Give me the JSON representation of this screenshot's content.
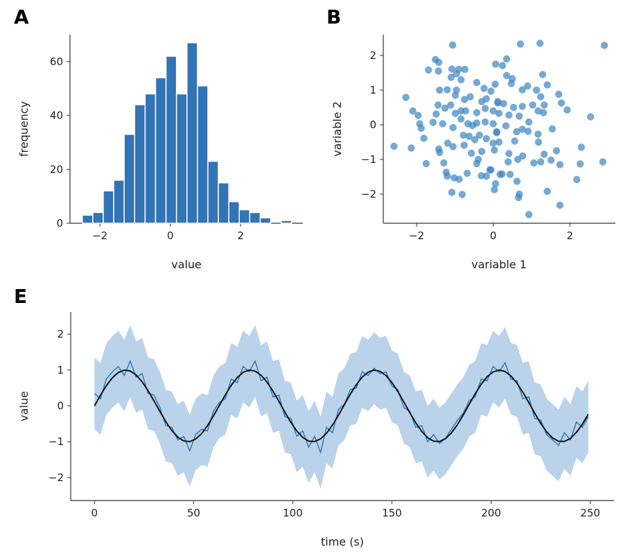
{
  "colors": {
    "bar": "#3274b5",
    "scatter": "#3c85c0",
    "band": "#bad3ea",
    "noisy_line": "#2f78b7",
    "smooth_line": "#111111"
  },
  "chart_data": [
    {
      "panel": "A",
      "type": "bar",
      "xlabel": "value",
      "ylabel": "frequency",
      "bin_start": -2.5,
      "bin_width": 0.2975,
      "values": [
        3,
        4,
        12,
        16,
        33,
        44,
        48,
        54,
        62,
        48,
        67,
        51,
        23,
        15,
        8,
        5,
        4,
        2,
        0,
        1
      ],
      "xlim": [
        -2.85,
        3.77
      ],
      "ylim": [
        0,
        70
      ],
      "xticks": [
        -2,
        0,
        2
      ],
      "yticks": [
        0,
        20,
        40,
        60
      ],
      "grid": false
    },
    {
      "panel": "B",
      "type": "scatter",
      "xlabel": "variable 1",
      "ylabel": "variable 2",
      "xlim": [
        -2.87,
        3.19
      ],
      "ylim": [
        -2.84,
        2.6
      ],
      "xticks": [
        -2,
        0,
        2
      ],
      "yticks": [
        -2,
        -1,
        0,
        1,
        2
      ],
      "grid": false,
      "points": [
        [
          -1.06,
          2.3
        ],
        [
          -1.51,
          1.88
        ],
        [
          -1.42,
          1.8
        ],
        [
          -1.69,
          1.58
        ],
        [
          -1.43,
          1.55
        ],
        [
          -1.08,
          1.61
        ],
        [
          -0.9,
          1.6
        ],
        [
          -0.74,
          1.6
        ],
        [
          -1.1,
          1.37
        ],
        [
          -0.96,
          1.47
        ],
        [
          -0.84,
          1.3
        ],
        [
          -0.43,
          1.22
        ],
        [
          0.06,
          1.75
        ],
        [
          -1.4,
          1.0
        ],
        [
          -1.2,
          1.01
        ],
        [
          -0.96,
          1.0
        ],
        [
          -0.99,
          0.85
        ],
        [
          -0.24,
          1.05
        ],
        [
          0.05,
          1.17
        ],
        [
          -0.06,
          0.97
        ],
        [
          -2.28,
          0.79
        ],
        [
          -0.75,
          0.73
        ],
        [
          -0.6,
          0.81
        ],
        [
          -0.3,
          0.67
        ],
        [
          -0.18,
          0.75
        ],
        [
          0.12,
          0.67
        ],
        [
          -1.44,
          0.57
        ],
        [
          -1.26,
          0.48
        ],
        [
          -1.11,
          0.57
        ],
        [
          -0.84,
          0.4
        ],
        [
          -0.72,
          0.4
        ],
        [
          -0.99,
          0.33
        ],
        [
          -2.1,
          0.4
        ],
        [
          -1.96,
          0.27
        ],
        [
          -1.49,
          0.31
        ],
        [
          -0.43,
          0.35
        ],
        [
          -0.21,
          0.47
        ],
        [
          0.0,
          0.4
        ],
        [
          0.15,
          0.33
        ],
        [
          -1.92,
          0.03
        ],
        [
          -1.88,
          -0.1
        ],
        [
          -1.57,
          0.07
        ],
        [
          -1.32,
          0.03
        ],
        [
          -1.05,
          -0.08
        ],
        [
          -0.84,
          0.17
        ],
        [
          -0.66,
          0.03
        ],
        [
          -0.54,
          -0.02
        ],
        [
          -0.43,
          0.05
        ],
        [
          -0.21,
          0.08
        ],
        [
          0.0,
          0.03
        ],
        [
          -1.81,
          -0.39
        ],
        [
          -0.78,
          -0.3
        ],
        [
          -0.63,
          -0.33
        ],
        [
          -0.48,
          -0.43
        ],
        [
          -0.36,
          -0.3
        ],
        [
          -0.18,
          -0.4
        ],
        [
          0.09,
          -0.2
        ],
        [
          -2.59,
          -0.62
        ],
        [
          -2.14,
          -0.67
        ],
        [
          -1.42,
          -0.7
        ],
        [
          -1.4,
          -0.8
        ],
        [
          -1.19,
          -0.53
        ],
        [
          -1.05,
          -0.63
        ],
        [
          -0.76,
          -0.59
        ],
        [
          -0.57,
          -0.82
        ],
        [
          -0.3,
          -0.77
        ],
        [
          -0.39,
          -1.0
        ],
        [
          -0.43,
          -1.12
        ],
        [
          0.0,
          -0.53
        ],
        [
          0.03,
          -0.73
        ],
        [
          -1.75,
          -1.12
        ],
        [
          -1.29,
          -1.1
        ],
        [
          -1.23,
          -1.37
        ],
        [
          -1.2,
          -1.48
        ],
        [
          -1.02,
          -1.53
        ],
        [
          -0.89,
          -1.57
        ],
        [
          -0.68,
          -1.4
        ],
        [
          -0.31,
          -1.47
        ],
        [
          -0.18,
          -1.48
        ],
        [
          -0.06,
          -1.3
        ],
        [
          0.18,
          -1.43
        ],
        [
          0.06,
          -1.7
        ],
        [
          0.03,
          -1.87
        ],
        [
          -1.08,
          -1.95
        ],
        [
          -0.81,
          -2.01
        ],
        [
          0.71,
          2.33
        ],
        [
          1.22,
          2.35
        ],
        [
          2.9,
          2.29
        ],
        [
          0.35,
          1.9
        ],
        [
          0.24,
          1.71
        ],
        [
          0.35,
          1.42
        ],
        [
          0.5,
          1.33
        ],
        [
          0.47,
          1.19
        ],
        [
          1.29,
          1.45
        ],
        [
          1.41,
          1.15
        ],
        [
          0.76,
          1.01
        ],
        [
          0.9,
          1.12
        ],
        [
          1.13,
          1.0
        ],
        [
          1.24,
          0.81
        ],
        [
          1.71,
          0.88
        ],
        [
          1.78,
          0.63
        ],
        [
          1.93,
          0.43
        ],
        [
          2.54,
          0.23
        ],
        [
          0.12,
          0.63
        ],
        [
          0.27,
          0.61
        ],
        [
          0.53,
          0.5
        ],
        [
          0.76,
          0.53
        ],
        [
          1.03,
          0.57
        ],
        [
          1.33,
          0.57
        ],
        [
          1.17,
          0.4
        ],
        [
          1.31,
          0.35
        ],
        [
          0.41,
          0.28
        ],
        [
          0.68,
          0.25
        ],
        [
          0.93,
          0.08
        ],
        [
          0.33,
          -0.03
        ],
        [
          0.61,
          -0.2
        ],
        [
          0.76,
          -0.13
        ],
        [
          0.91,
          -0.19
        ],
        [
          1.54,
          -0.12
        ],
        [
          0.09,
          -0.23
        ],
        [
          1.17,
          -0.27
        ],
        [
          0.56,
          -0.47
        ],
        [
          1.18,
          -0.5
        ],
        [
          0.15,
          -0.5
        ],
        [
          2.3,
          -0.65
        ],
        [
          1.65,
          -0.75
        ],
        [
          0.41,
          -0.83
        ],
        [
          0.77,
          -0.9
        ],
        [
          1.33,
          -0.85
        ],
        [
          0.39,
          -1.07
        ],
        [
          0.64,
          -1.0
        ],
        [
          1.06,
          -1.1
        ],
        [
          1.24,
          -1.07
        ],
        [
          1.51,
          -1.02
        ],
        [
          1.74,
          -1.15
        ],
        [
          2.27,
          -1.13
        ],
        [
          2.86,
          -1.07
        ],
        [
          -0.09,
          -1.3
        ],
        [
          0.23,
          -1.42
        ],
        [
          0.44,
          -1.43
        ],
        [
          0.62,
          -1.63
        ],
        [
          2.18,
          -1.58
        ],
        [
          0.68,
          -2.0
        ],
        [
          0.66,
          -2.1
        ],
        [
          1.41,
          -1.92
        ],
        [
          1.74,
          -2.32
        ],
        [
          0.93,
          -2.59
        ]
      ]
    },
    {
      "panel": "E",
      "type": "line",
      "xlabel": "time (s)",
      "ylabel": "value",
      "xlim": [
        -12,
        262
      ],
      "ylim": [
        -2.64,
        2.62
      ],
      "xticks": [
        0,
        50,
        100,
        150,
        200,
        250
      ],
      "yticks": [
        -2,
        -1,
        0,
        1,
        2
      ],
      "grid": false,
      "x": [
        0,
        3,
        6,
        9,
        12,
        15,
        18,
        21,
        24,
        27,
        30,
        33,
        36,
        39,
        42,
        45,
        48,
        51,
        54,
        57,
        60,
        63,
        66,
        69,
        72,
        75,
        78,
        81,
        84,
        87,
        90,
        93,
        96,
        99,
        102,
        105,
        108,
        111,
        114,
        117,
        120,
        123,
        126,
        129,
        132,
        135,
        138,
        141,
        144,
        147,
        150,
        153,
        156,
        159,
        162,
        165,
        168,
        171,
        174,
        177,
        180,
        183,
        186,
        189,
        192,
        195,
        198,
        201,
        204,
        207,
        210,
        213,
        216,
        219,
        222,
        225,
        228,
        231,
        234,
        237,
        240,
        243,
        246,
        249
      ],
      "noisy": [
        0.35,
        0.2,
        0.75,
        0.95,
        1.1,
        0.85,
        1.25,
        0.8,
        0.9,
        0.35,
        0.3,
        -0.05,
        -0.55,
        -0.6,
        -0.95,
        -0.85,
        -1.25,
        -0.8,
        -0.65,
        -0.7,
        -0.15,
        0.1,
        0.2,
        0.75,
        0.65,
        1.1,
        0.95,
        1.25,
        0.7,
        0.8,
        0.25,
        0.3,
        -0.3,
        -0.35,
        -0.85,
        -0.7,
        -1.15,
        -0.85,
        -1.3,
        -0.6,
        -0.75,
        -0.1,
        0.05,
        0.45,
        0.5,
        0.95,
        0.85,
        1.05,
        0.9,
        0.95,
        0.55,
        0.45,
        -0.05,
        -0.15,
        -0.6,
        -0.55,
        -1.0,
        -0.8,
        -1.05,
        -0.9,
        -0.65,
        -0.4,
        -0.2,
        0.15,
        0.25,
        0.75,
        0.7,
        1.1,
        0.95,
        1.2,
        0.75,
        0.7,
        0.2,
        0.25,
        -0.35,
        -0.4,
        -0.8,
        -0.95,
        -1.1,
        -0.75,
        -0.95,
        -0.45,
        -0.6,
        -0.3
      ],
      "band_halfwidth": 1.0,
      "smooth": [
        0,
        0.296,
        0.565,
        0.783,
        0.932,
        0.997,
        0.974,
        0.863,
        0.675,
        0.427,
        0.141,
        -0.158,
        -0.443,
        -0.688,
        -0.872,
        -0.978,
        -0.996,
        -0.926,
        -0.773,
        -0.551,
        -0.279,
        0.017,
        0.312,
        0.578,
        0.794,
        0.938,
        0.999,
        0.97,
        0.855,
        0.663,
        0.412,
        0.125,
        -0.174,
        -0.457,
        -0.7,
        -0.88,
        -0.981,
        -0.995,
        -0.92,
        -0.763,
        -0.537,
        -0.263,
        0.033,
        0.327,
        0.591,
        0.804,
        0.943,
        0.999,
        0.966,
        0.847,
        0.65,
        0.397,
        0.109,
        -0.19,
        -0.471,
        -0.712,
        -0.887,
        -0.984,
        -0.993,
        -0.913,
        -0.751,
        -0.523,
        -0.247,
        0.05,
        0.342,
        0.604,
        0.814,
        0.948,
        1.0,
        0.961,
        0.837,
        0.637,
        0.382,
        0.093,
        -0.205,
        -0.485,
        -0.725,
        -0.895,
        -0.987,
        -0.991,
        -0.906,
        -0.74,
        -0.509,
        -0.232
      ]
    }
  ]
}
